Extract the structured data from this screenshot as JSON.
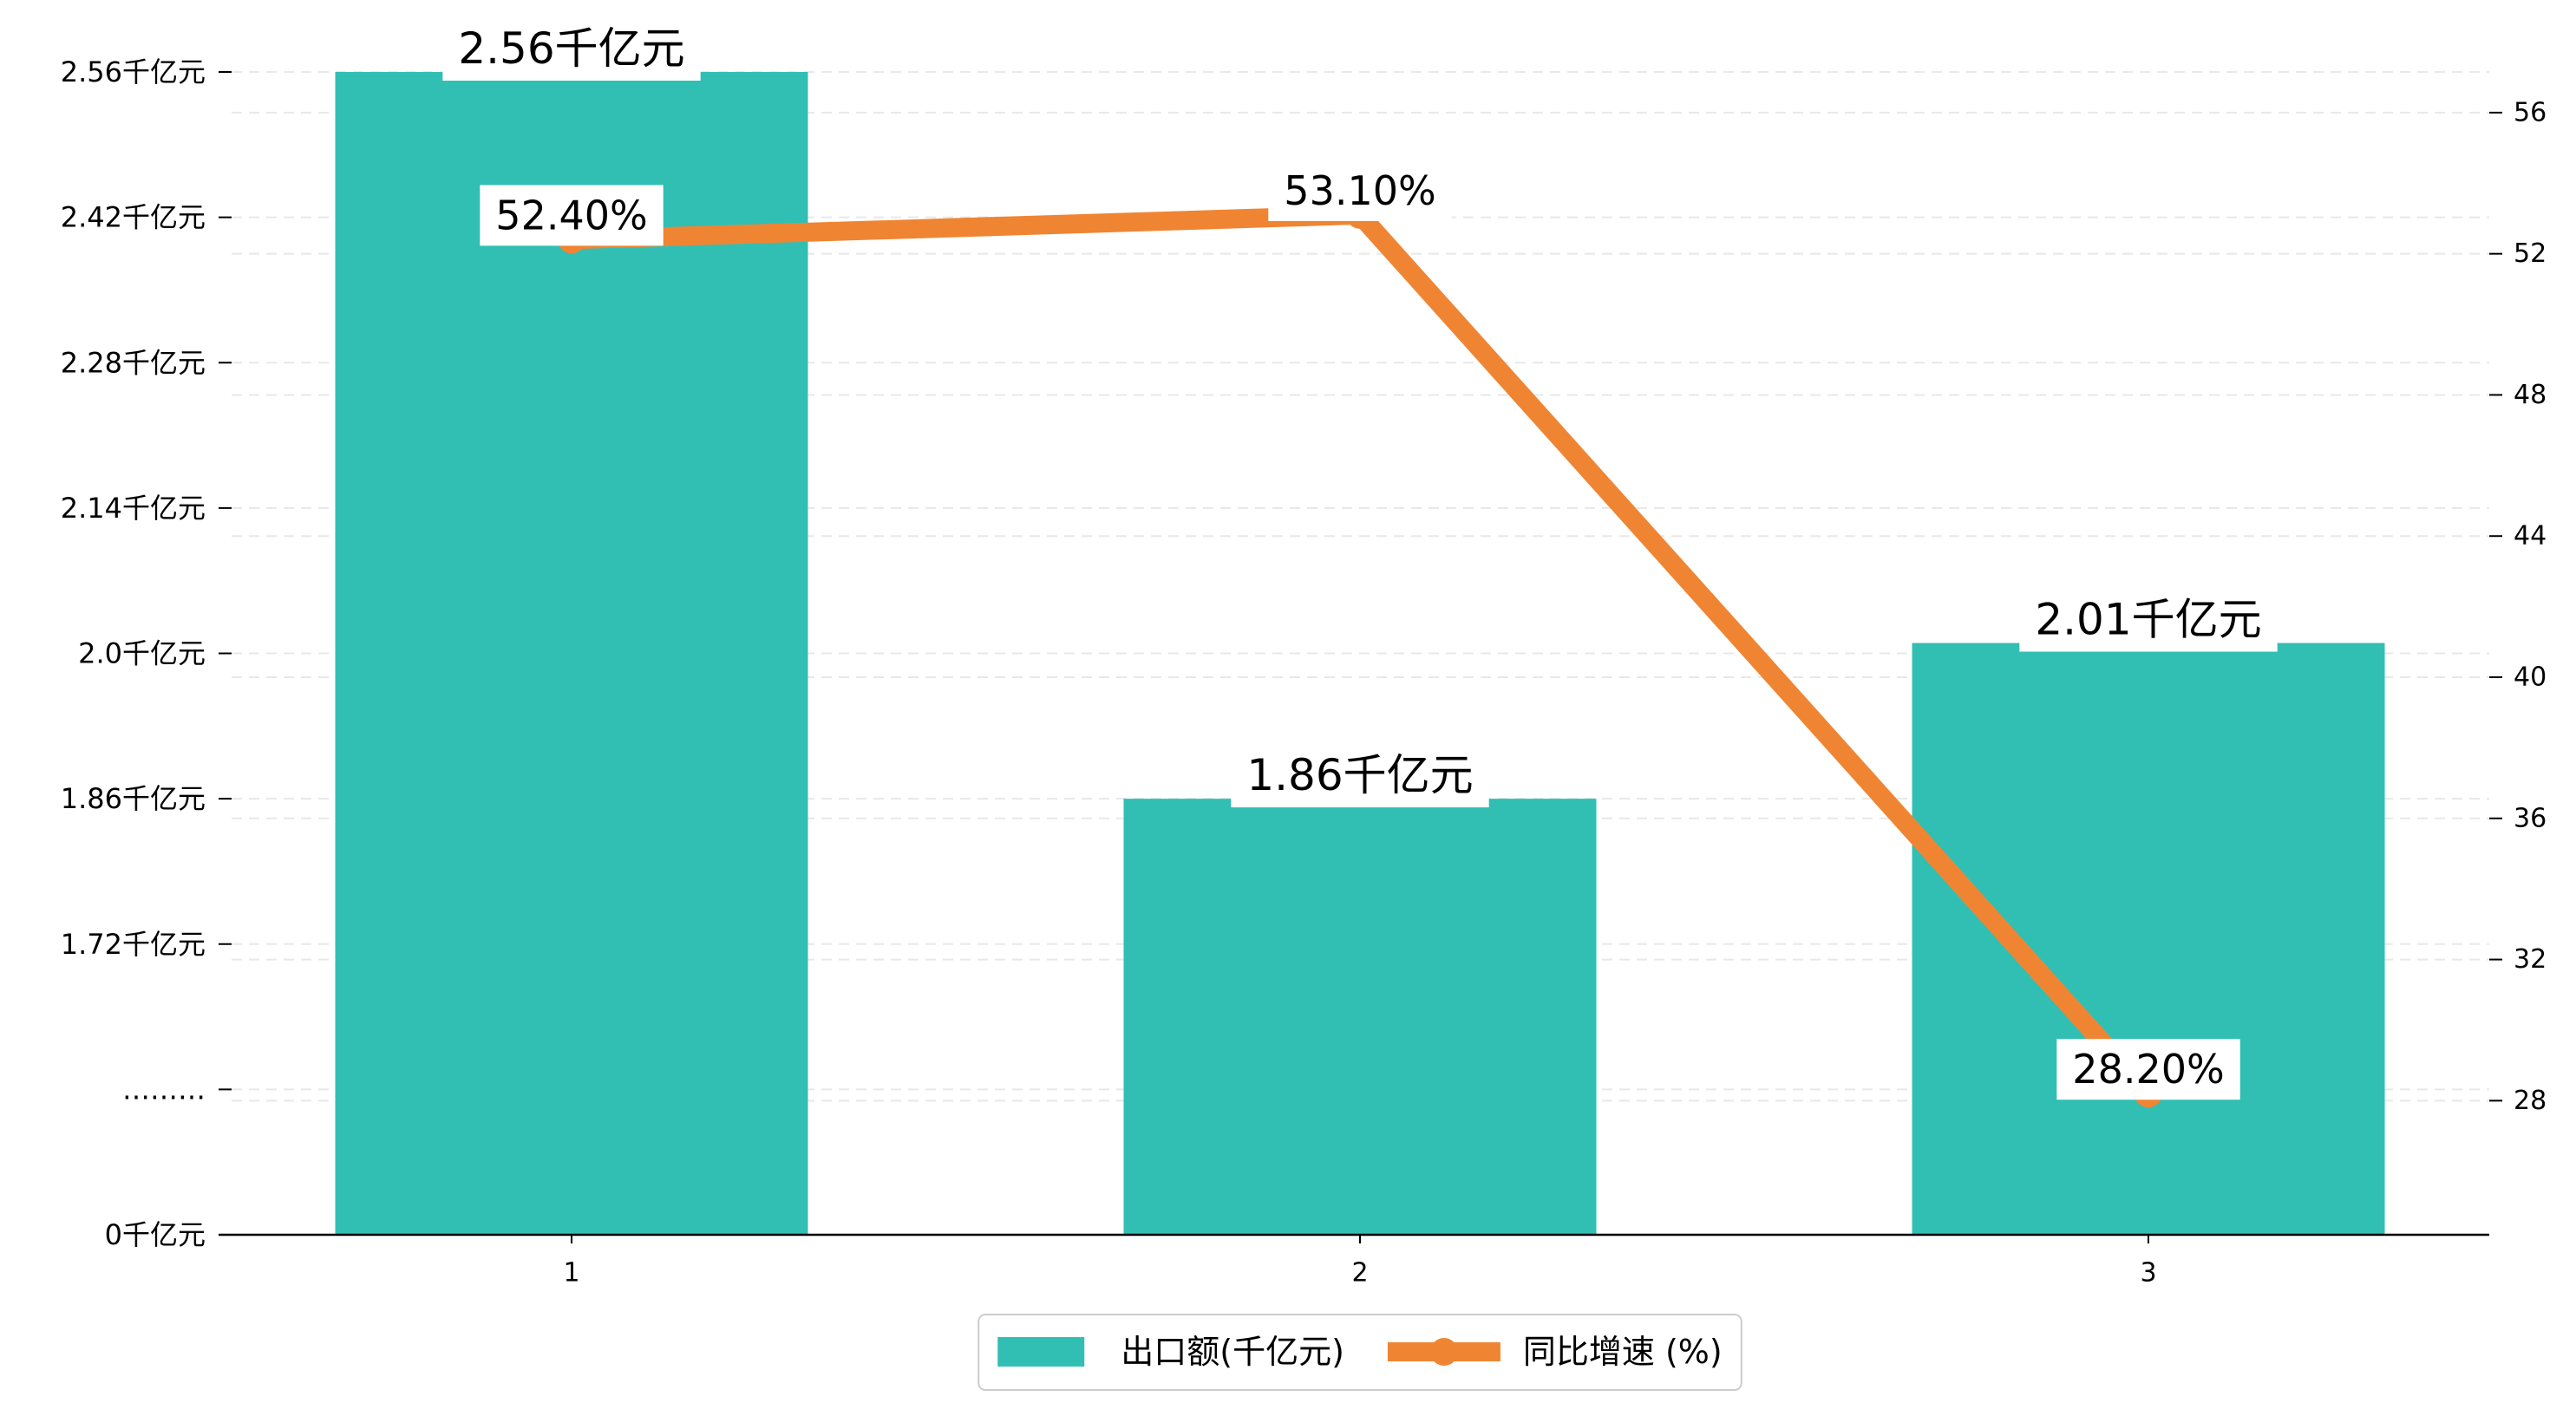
{
  "chart_data": {
    "type": "bar",
    "categories": [
      "1",
      "2",
      "3"
    ],
    "series": [
      {
        "name": "出口额(千亿元)",
        "type": "bar",
        "axis": "left",
        "values": [
          2.56,
          1.86,
          2.01
        ],
        "labels": [
          "2.56千亿元",
          "1.86千亿元",
          "2.01千亿元"
        ],
        "color": "#32BFB3"
      },
      {
        "name": "同比增速 (%)",
        "type": "line",
        "axis": "right",
        "values": [
          52.4,
          53.1,
          28.2
        ],
        "labels": [
          "52.40%",
          "53.10%",
          "28.20%"
        ],
        "color": "#EF8533"
      }
    ],
    "y_left": {
      "tick_labels": [
        "2.56千亿元",
        "2.42千亿元",
        "2.28千亿元",
        "2.14千亿元",
        "2.0千亿元",
        "1.86千亿元",
        "1.72千亿元",
        "………",
        "0千亿元"
      ],
      "tick_values": [
        2.56,
        2.42,
        2.28,
        2.14,
        2.0,
        1.86,
        1.72,
        null,
        0
      ],
      "axis_break": true
    },
    "y_right": {
      "ticks": [
        56,
        52,
        48,
        44,
        40,
        36,
        32,
        28
      ],
      "ylim": [
        24.2,
        58.7
      ]
    },
    "grid": true,
    "legend": "bottom-center"
  }
}
